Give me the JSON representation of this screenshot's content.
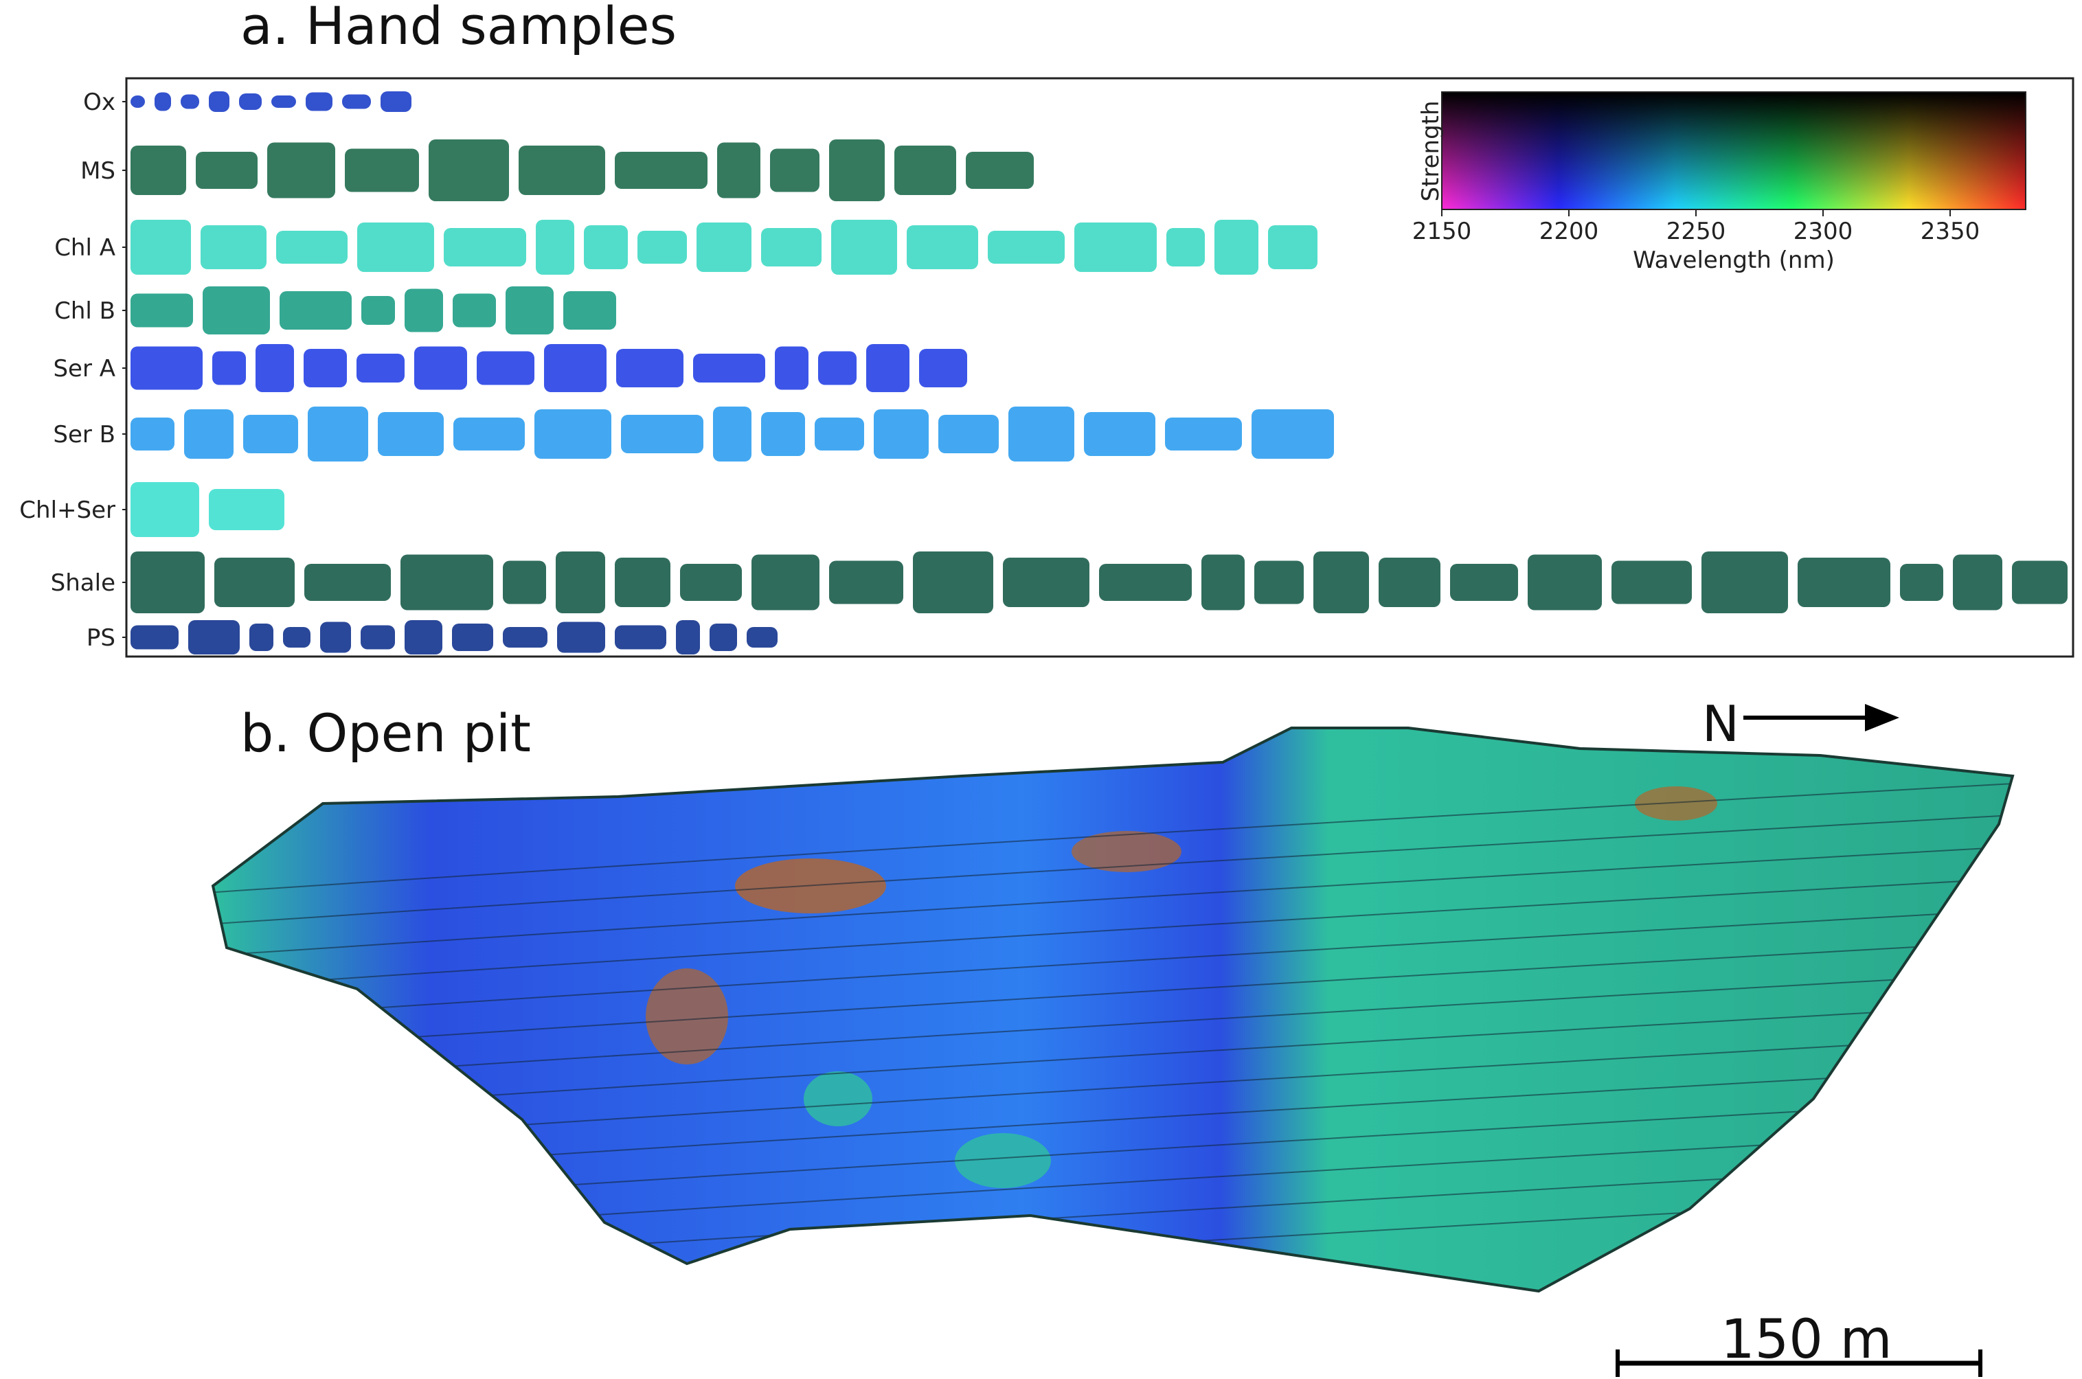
{
  "panel_a": {
    "title": "a. Hand samples",
    "rows": [
      {
        "label": "Ox",
        "color": "#1d3fc8"
      },
      {
        "label": "MS",
        "color": "#1f6b4e"
      },
      {
        "label": "Chl A",
        "color": "#3fd9c4"
      },
      {
        "label": "Chl B",
        "color": "#1f9e86"
      },
      {
        "label": "Ser A",
        "color": "#2742e6"
      },
      {
        "label": "Ser B",
        "color": "#2f9ff0"
      },
      {
        "label": "Chl+Ser",
        "color": "#40e0d0"
      },
      {
        "label": "Shale",
        "color": "#1a5c4a"
      },
      {
        "label": "PS",
        "color": "#13348e"
      }
    ],
    "colorbar": {
      "ylabel": "Strength",
      "xlabel": "Wavelength (nm)",
      "ticks": [
        "2150",
        "2200",
        "2250",
        "2300",
        "2350"
      ],
      "gradient_colors": [
        "#ff2bd6",
        "#2a2aff",
        "#1fd0ff",
        "#1fff6a",
        "#ffe02a",
        "#ff2a2a"
      ]
    }
  },
  "panel_b": {
    "title": "b. Open pit",
    "north_label": "N",
    "scale_bar_label": "150 m",
    "colors": {
      "chlorite": "#2fbf9f",
      "sericite": "#2b4fe0",
      "oxide": "#b5652a"
    }
  }
}
